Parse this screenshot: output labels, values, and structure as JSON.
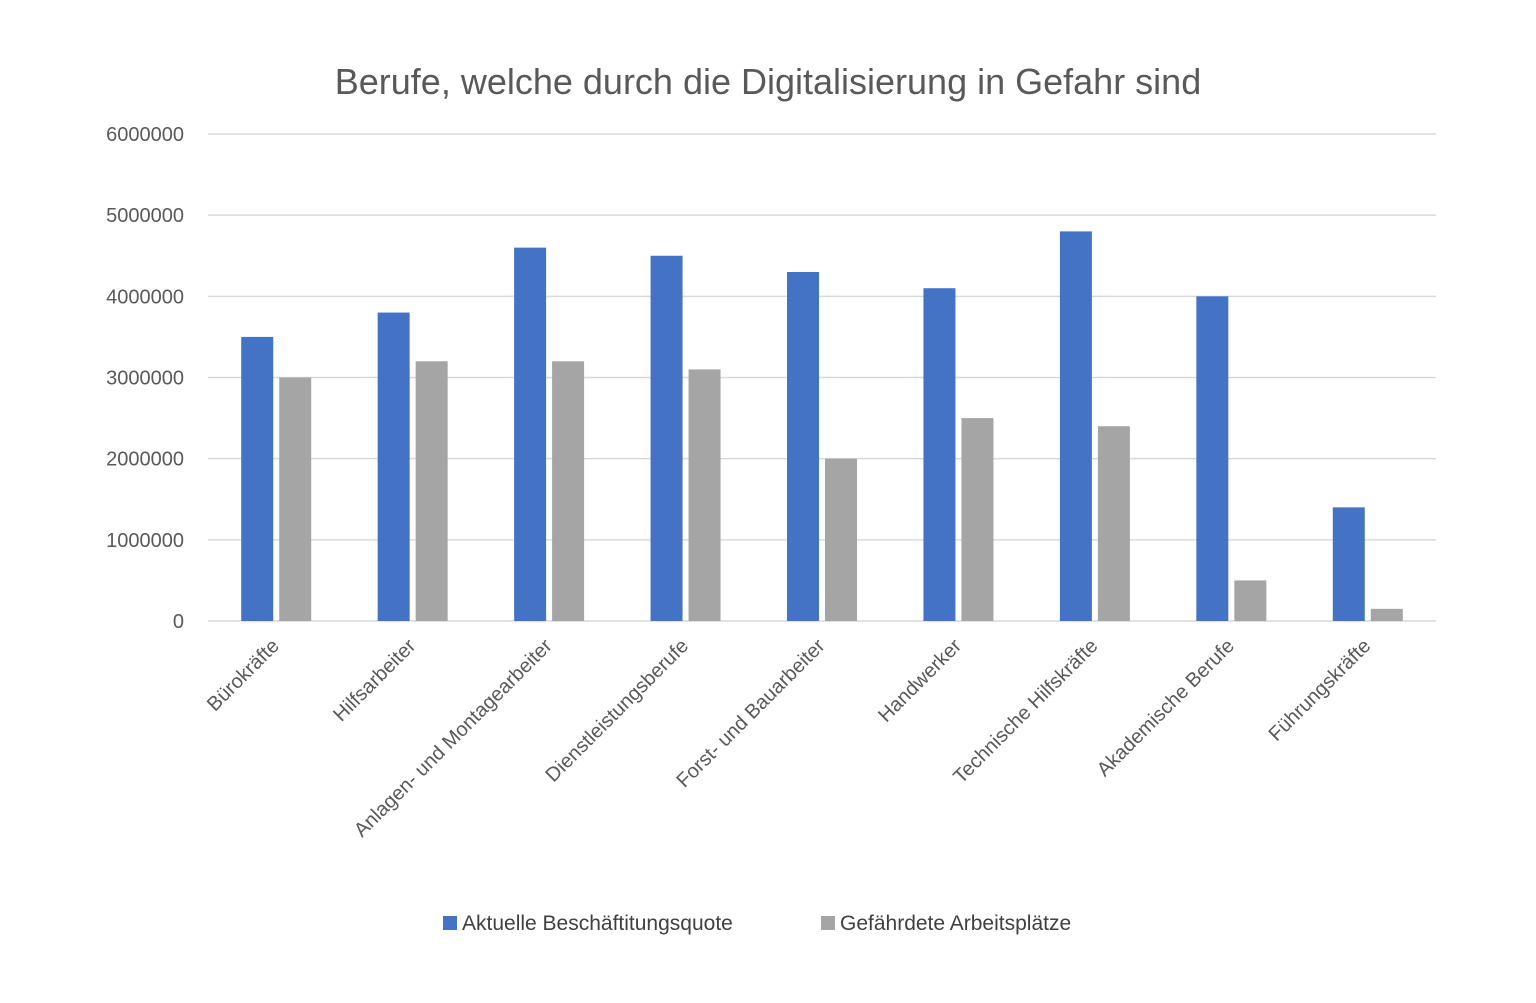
{
  "chart_data": {
    "type": "bar",
    "title": "Berufe, welche durch die Digitalisierung in Gefahr sind",
    "xlabel": "",
    "ylabel": "",
    "ylim": [
      0,
      6000000
    ],
    "yticks": [
      0,
      1000000,
      2000000,
      3000000,
      4000000,
      5000000,
      6000000
    ],
    "categories": [
      "Bürokräfte",
      "Hilfsarbeiter",
      "Anlagen- und Montagearbeiter",
      "Dienstleistungsberufe",
      "Forst- und Bauarbeiter",
      "Handwerker",
      "Technische Hilfskräfte",
      "Akademische Berufe",
      "Führungskräfte"
    ],
    "series": [
      {
        "name": "Aktuelle Beschäftitungsquote",
        "color": "#4472c4",
        "values": [
          3500000,
          3800000,
          4600000,
          4500000,
          4300000,
          4100000,
          4800000,
          4000000,
          1400000
        ]
      },
      {
        "name": "Gefährdete Arbeitsplätze",
        "color": "#a5a5a5",
        "values": [
          3000000,
          3200000,
          3200000,
          3100000,
          2000000,
          2500000,
          2400000,
          500000,
          150000
        ]
      }
    ],
    "grid": true,
    "legend": "bottom"
  }
}
